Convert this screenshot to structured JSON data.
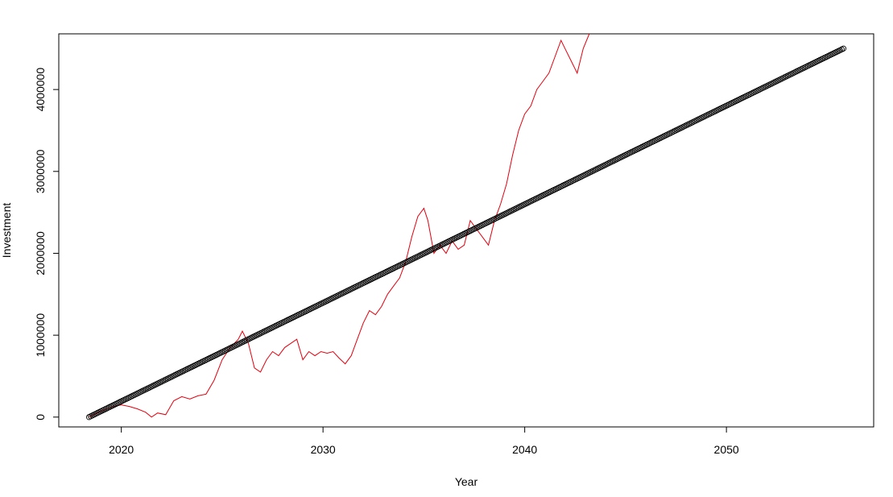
{
  "chart_data": {
    "type": "line",
    "xlabel": "Year",
    "ylabel": "Investment",
    "xlim": [
      2016.9,
      2057.3
    ],
    "ylim": [
      -120000,
      4680000
    ],
    "x_ticks": [
      2020,
      2030,
      2040,
      2050
    ],
    "y_ticks": [
      0,
      1000000,
      2000000,
      3000000,
      4000000
    ],
    "x_tick_labels": [
      "2020",
      "2030",
      "2040",
      "2050"
    ],
    "y_tick_labels": [
      "0",
      "1000000",
      "2000000",
      "3000000",
      "4000000"
    ],
    "grid": false,
    "legend": "none",
    "series": [
      {
        "style": "points",
        "color": "#000000",
        "x_start": 2018.4,
        "x_end": 2055.8,
        "y_start": 0,
        "y_end": 4500000,
        "n_points": 450
      },
      {
        "style": "line",
        "color": "#e3000f",
        "x": [
          2018.4,
          2018.8,
          2019.2,
          2019.6,
          2020.0,
          2020.4,
          2020.8,
          2021.2,
          2021.5,
          2021.8,
          2022.2,
          2022.6,
          2023.0,
          2023.4,
          2023.8,
          2024.2,
          2024.6,
          2025.0,
          2025.4,
          2025.8,
          2026.0,
          2026.3,
          2026.6,
          2026.9,
          2027.2,
          2027.5,
          2027.8,
          2028.1,
          2028.4,
          2028.7,
          2029.0,
          2029.3,
          2029.6,
          2029.9,
          2030.2,
          2030.5,
          2030.8,
          2031.1,
          2031.4,
          2031.7,
          2032.0,
          2032.3,
          2032.6,
          2032.9,
          2033.2,
          2033.5,
          2033.8,
          2034.1,
          2034.4,
          2034.7,
          2035.0,
          2035.2,
          2035.5,
          2035.8,
          2036.1,
          2036.4,
          2036.7,
          2037.0,
          2037.3,
          2037.6,
          2037.9,
          2038.2,
          2038.5,
          2038.8,
          2039.1,
          2039.4,
          2039.7,
          2040.0,
          2040.3,
          2040.6,
          2040.9,
          2041.2,
          2041.5,
          2041.8,
          2042.0,
          2042.3,
          2042.6,
          2042.9,
          2043.2
        ],
        "y": [
          0,
          50000,
          90000,
          130000,
          150000,
          130000,
          100000,
          60000,
          0,
          50000,
          30000,
          200000,
          250000,
          220000,
          260000,
          280000,
          450000,
          700000,
          850000,
          950000,
          1050000,
          900000,
          600000,
          550000,
          700000,
          800000,
          750000,
          850000,
          900000,
          950000,
          700000,
          800000,
          750000,
          800000,
          780000,
          800000,
          720000,
          650000,
          750000,
          950000,
          1150000,
          1300000,
          1250000,
          1350000,
          1500000,
          1600000,
          1700000,
          1900000,
          2200000,
          2450000,
          2550000,
          2400000,
          2000000,
          2100000,
          2000000,
          2150000,
          2050000,
          2100000,
          2400000,
          2300000,
          2200000,
          2100000,
          2400000,
          2600000,
          2850000,
          3200000,
          3500000,
          3700000,
          3800000,
          4000000,
          4100000,
          4200000,
          4400000,
          4600000,
          4500000,
          4350000,
          4200000,
          4500000,
          4680000
        ]
      }
    ]
  }
}
